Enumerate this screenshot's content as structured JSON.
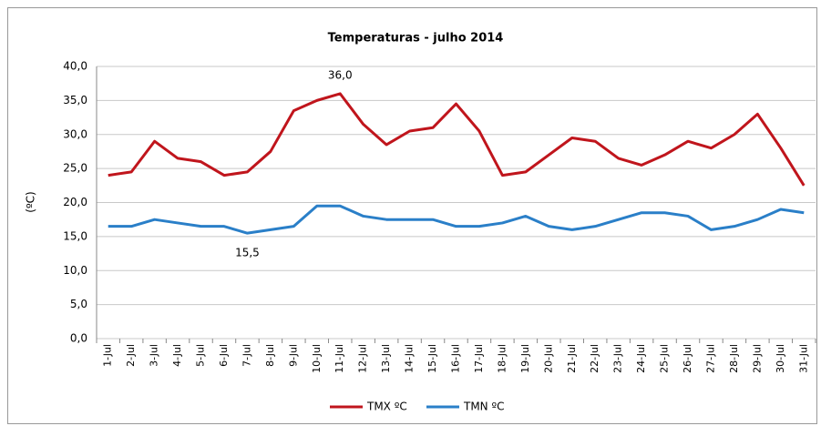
{
  "chart_data": {
    "type": "line",
    "title": "Temperaturas - julho 2014",
    "ylabel": "(ºC)",
    "categories": [
      "1-Jul",
      "2-Jul",
      "3-Jul",
      "4-Jul",
      "5-Jul",
      "6-Jul",
      "7-Jul",
      "8-Jul",
      "9-Jul",
      "10-Jul",
      "11-Jul",
      "12-Jul",
      "13-Jul",
      "14-Jul",
      "15-Jul",
      "16-Jul",
      "17-Jul",
      "18-Jul",
      "19-Jul",
      "20-Jul",
      "21-Jul",
      "22-Jul",
      "23-Jul",
      "24-Jul",
      "25-Jul",
      "26-Jul",
      "27-Jul",
      "28-Jul",
      "29-Jul",
      "30-Jul",
      "31-Jul"
    ],
    "series": [
      {
        "name": "TMX ºC",
        "color": "#c0151c",
        "values": [
          24.0,
          24.5,
          29.0,
          26.5,
          26.0,
          24.0,
          24.5,
          27.5,
          33.5,
          35.0,
          36.0,
          31.5,
          28.5,
          30.5,
          31.0,
          34.5,
          30.5,
          24.0,
          24.5,
          27.0,
          29.5,
          29.0,
          26.5,
          25.5,
          27.0,
          29.0,
          28.0,
          30.0,
          33.0,
          28.0,
          22.5
        ],
        "value_labels": [
          null,
          null,
          null,
          null,
          null,
          null,
          null,
          null,
          null,
          null,
          "36,0",
          null,
          null,
          null,
          null,
          null,
          null,
          null,
          null,
          null,
          null,
          null,
          null,
          null,
          null,
          null,
          null,
          null,
          null,
          null,
          null
        ]
      },
      {
        "name": "TMN ºC",
        "color": "#2a7fc8",
        "values": [
          16.5,
          16.5,
          17.5,
          17.0,
          16.5,
          16.5,
          15.5,
          16.0,
          16.5,
          19.5,
          19.5,
          18.0,
          17.5,
          17.5,
          17.5,
          16.5,
          16.5,
          17.0,
          18.0,
          16.5,
          16.0,
          16.5,
          17.5,
          18.5,
          18.5,
          18.0,
          16.0,
          16.5,
          17.5,
          19.0,
          18.5
        ],
        "value_labels": [
          null,
          null,
          null,
          null,
          null,
          null,
          "15,5",
          null,
          null,
          null,
          null,
          null,
          null,
          null,
          null,
          null,
          null,
          null,
          null,
          null,
          null,
          null,
          null,
          null,
          null,
          null,
          null,
          null,
          null,
          null,
          null
        ]
      }
    ],
    "ylim": [
      0,
      40
    ],
    "yticks": [
      {
        "value": 0,
        "label": "0,0"
      },
      {
        "value": 5,
        "label": "5,0"
      },
      {
        "value": 10,
        "label": "10,0"
      },
      {
        "value": 15,
        "label": "15,0"
      },
      {
        "value": 20,
        "label": "20,0"
      },
      {
        "value": 25,
        "label": "25,0"
      },
      {
        "value": 30,
        "label": "30,0"
      },
      {
        "value": 35,
        "label": "35,0"
      },
      {
        "value": 40,
        "label": "40,0"
      }
    ],
    "grid": true,
    "legend": "bottom"
  }
}
